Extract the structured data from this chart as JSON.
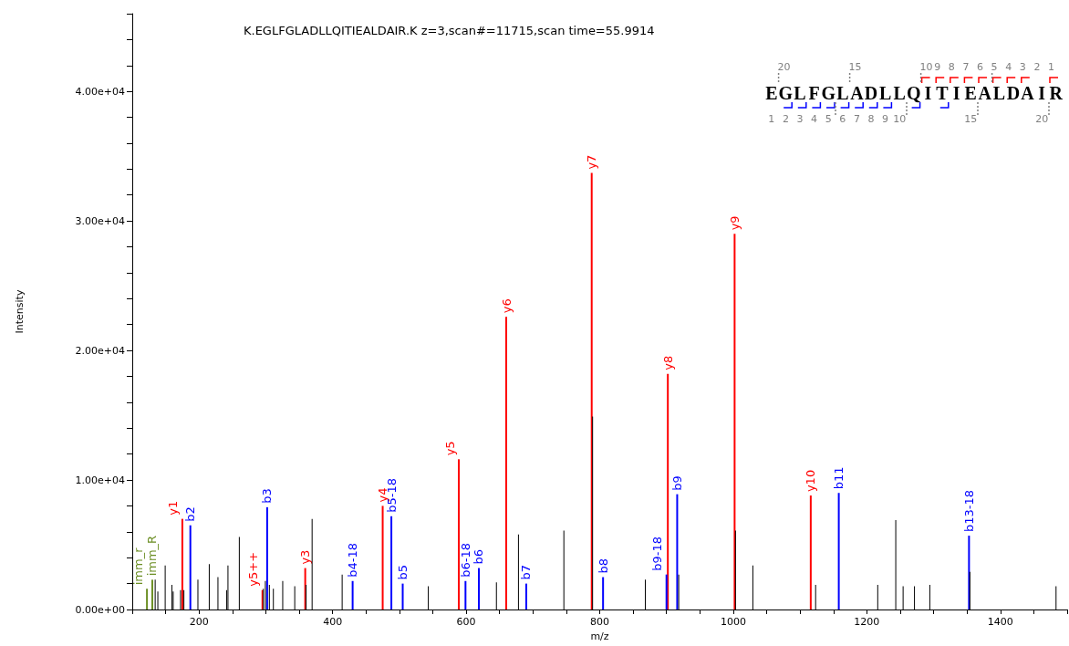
{
  "chart_data": {
    "type": "bar",
    "title": "K.EGLFGLADLLQITIEALDAIR.K z=3,scan#=11715,scan time=55.9914",
    "xlabel": "m/z",
    "ylabel": "Intensity",
    "annotations": [
      "EGLFGLADLLQITIEALDAIR",
      "20",
      "15",
      "10",
      "9",
      "8",
      "7",
      "6",
      "5",
      "4",
      "3",
      "2",
      "1",
      "1",
      "2",
      "3",
      "4",
      "5",
      "6",
      "7",
      "8",
      "9",
      "10",
      "15",
      "20"
    ],
    "xlim": [
      100,
      1500
    ],
    "xticks": [
      {
        "value": 100,
        "label": null
      },
      {
        "value": 150,
        "label": null
      },
      200,
      {
        "value": 250,
        "label": null
      },
      {
        "value": 300,
        "label": null
      },
      {
        "value": 350,
        "label": null
      },
      400,
      {
        "value": 450,
        "label": null
      },
      {
        "value": 500,
        "label": null
      },
      {
        "value": 550,
        "label": null
      },
      600,
      {
        "value": 650,
        "label": null
      },
      {
        "value": 700,
        "label": null
      },
      {
        "value": 750,
        "label": null
      },
      800,
      {
        "value": 850,
        "label": null
      },
      {
        "value": 900,
        "label": null
      },
      {
        "value": 950,
        "label": null
      },
      1000,
      {
        "value": 1050,
        "label": null
      },
      {
        "value": 1100,
        "label": null
      },
      {
        "value": 1150,
        "label": null
      },
      1200,
      {
        "value": 1250,
        "label": null
      },
      {
        "value": 1300,
        "label": null
      },
      {
        "value": 1350,
        "label": null
      },
      1400,
      {
        "value": 1450,
        "label": null
      },
      {
        "value": 1500,
        "label": null
      }
    ],
    "ylim": [
      0,
      46000
    ],
    "yticks": [
      {
        "value": 0,
        "label": "0.00e+00"
      },
      {
        "value": 2000,
        "label": null
      },
      {
        "value": 4000,
        "label": null
      },
      {
        "value": 6000,
        "label": null
      },
      {
        "value": 8000,
        "label": null
      },
      {
        "value": 10000,
        "label": "1.00e+04"
      },
      {
        "value": 12000,
        "label": null
      },
      {
        "value": 14000,
        "label": null
      },
      {
        "value": 16000,
        "label": null
      },
      {
        "value": 18000,
        "label": null
      },
      {
        "value": 20000,
        "label": "2.00e+04"
      },
      {
        "value": 22000,
        "label": null
      },
      {
        "value": 24000,
        "label": null
      },
      {
        "value": 26000,
        "label": null
      },
      {
        "value": 28000,
        "label": null
      },
      {
        "value": 30000,
        "label": "3.00e+04"
      },
      {
        "value": 32000,
        "label": null
      },
      {
        "value": 34000,
        "label": null
      },
      {
        "value": 36000,
        "label": null
      },
      {
        "value": 38000,
        "label": null
      },
      {
        "value": 40000,
        "label": "4.00e+04"
      },
      {
        "value": 42000,
        "label": null
      },
      {
        "value": 44000,
        "label": null
      },
      {
        "value": 46000,
        "label": null
      }
    ],
    "series": [
      {
        "color": "#000000",
        "x": [
          135,
          139,
          150,
          160,
          162,
          173,
          178,
          199,
          216,
          229,
          242,
          244,
          261,
          297,
          300,
          306,
          312,
          326,
          344,
          361,
          370,
          415,
          544,
          646,
          679,
          747,
          790,
          869,
          919,
          1004,
          1030,
          1124,
          1217,
          1244,
          1255,
          1272,
          1295,
          1355,
          1484
        ],
        "values": [
          2300,
          1400,
          3400,
          1900,
          1400,
          1500,
          1500,
          2300,
          3500,
          2500,
          1500,
          3400,
          5600,
          1600,
          2200,
          1900,
          1600,
          2200,
          1800,
          1900,
          7000,
          2700,
          1800,
          2100,
          5800,
          6100,
          14900,
          2300,
          2700,
          6100,
          3400,
          1900,
          1900,
          6900,
          1800,
          1800,
          1900,
          2900,
          1800
        ]
      },
      {
        "color": "#ff0000",
        "x": [
          175,
          295,
          359,
          475,
          589,
          660,
          788,
          902,
          1002,
          1116
        ],
        "values": [
          7000,
          1500,
          3200,
          8000,
          11600,
          22600,
          33700,
          18200,
          29000,
          8800
        ],
        "value_labels": [
          "y1",
          "y5++",
          "y3",
          "y4",
          "y5",
          "y6",
          "y7",
          "y8",
          "y9",
          "y10"
        ]
      },
      {
        "color": "#0000ff",
        "x": [
          187,
          302,
          430,
          488,
          505,
          599,
          619,
          690,
          805,
          900,
          916,
          1158,
          1353
        ],
        "values": [
          6500,
          7900,
          2200,
          7200,
          2000,
          2200,
          3200,
          2000,
          2500,
          2700,
          8900,
          9000,
          5700
        ],
        "value_labels": [
          "b2",
          "b3",
          "b4-18",
          "b5-18",
          "b5",
          "b6-18",
          "b6",
          "b7",
          "b8",
          "b9-18",
          "b9",
          "b11",
          "b13-18"
        ]
      },
      {
        "color": "#6b8e23",
        "x": [
          122,
          130
        ],
        "values": [
          1600,
          2300
        ],
        "value_labels": [
          "imm_r",
          "imm_R"
        ]
      }
    ]
  }
}
